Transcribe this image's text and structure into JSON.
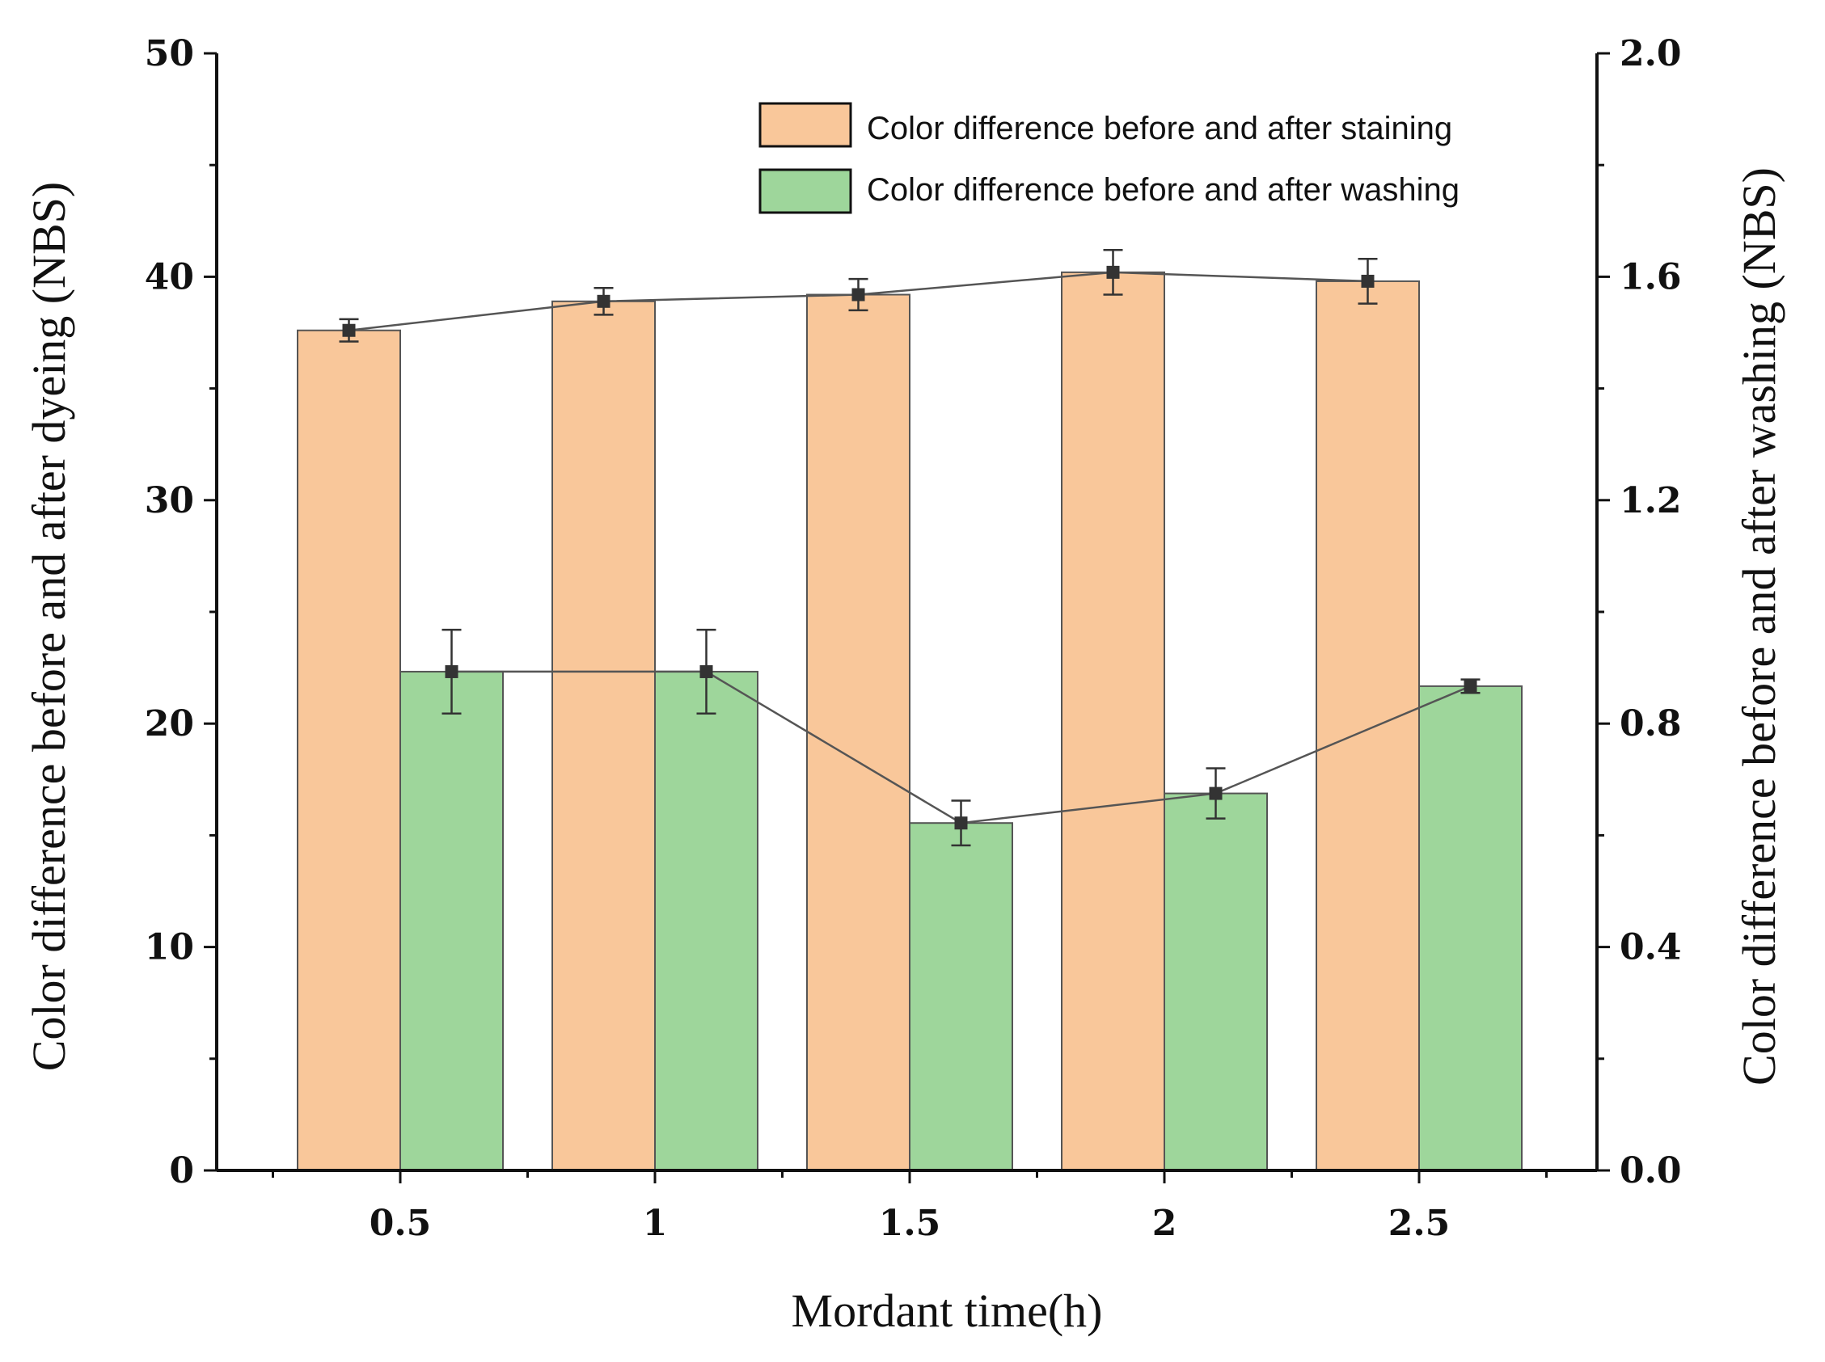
{
  "chart_data": {
    "type": "bar",
    "categories": [
      "0.5",
      "1",
      "1.5",
      "2",
      "2.5"
    ],
    "xlabel": "Mordant time(h)",
    "ylabel_left": "Color difference before and after dyeing (NBS)",
    "ylabel_right": "Color difference before and after washing (NBS)",
    "ylim_left": [
      0,
      50
    ],
    "ylim_right": [
      0.0,
      2.0
    ],
    "yticks_left": [
      "0",
      "10",
      "20",
      "30",
      "40",
      "50"
    ],
    "yticks_right": [
      "0.0",
      "0.4",
      "0.8",
      "1.2",
      "1.6",
      "2.0"
    ],
    "grid": false,
    "legend_position": "top-right",
    "series": [
      {
        "name": "Color difference before and after staining",
        "axis": "left",
        "color": "#F9C79A",
        "values": [
          37.6,
          38.9,
          39.2,
          40.2,
          39.8
        ],
        "errors": [
          0.5,
          0.6,
          0.7,
          1.0,
          1.0
        ]
      },
      {
        "name": "Color difference before and after washing",
        "axis": "right",
        "color": "#9ED69B",
        "values": [
          0.893,
          0.893,
          0.622,
          0.675,
          0.867
        ],
        "errors": [
          0.075,
          0.075,
          0.04,
          0.045,
          0.012
        ]
      }
    ],
    "line_color": "#555555",
    "marker_color": "#333333"
  }
}
